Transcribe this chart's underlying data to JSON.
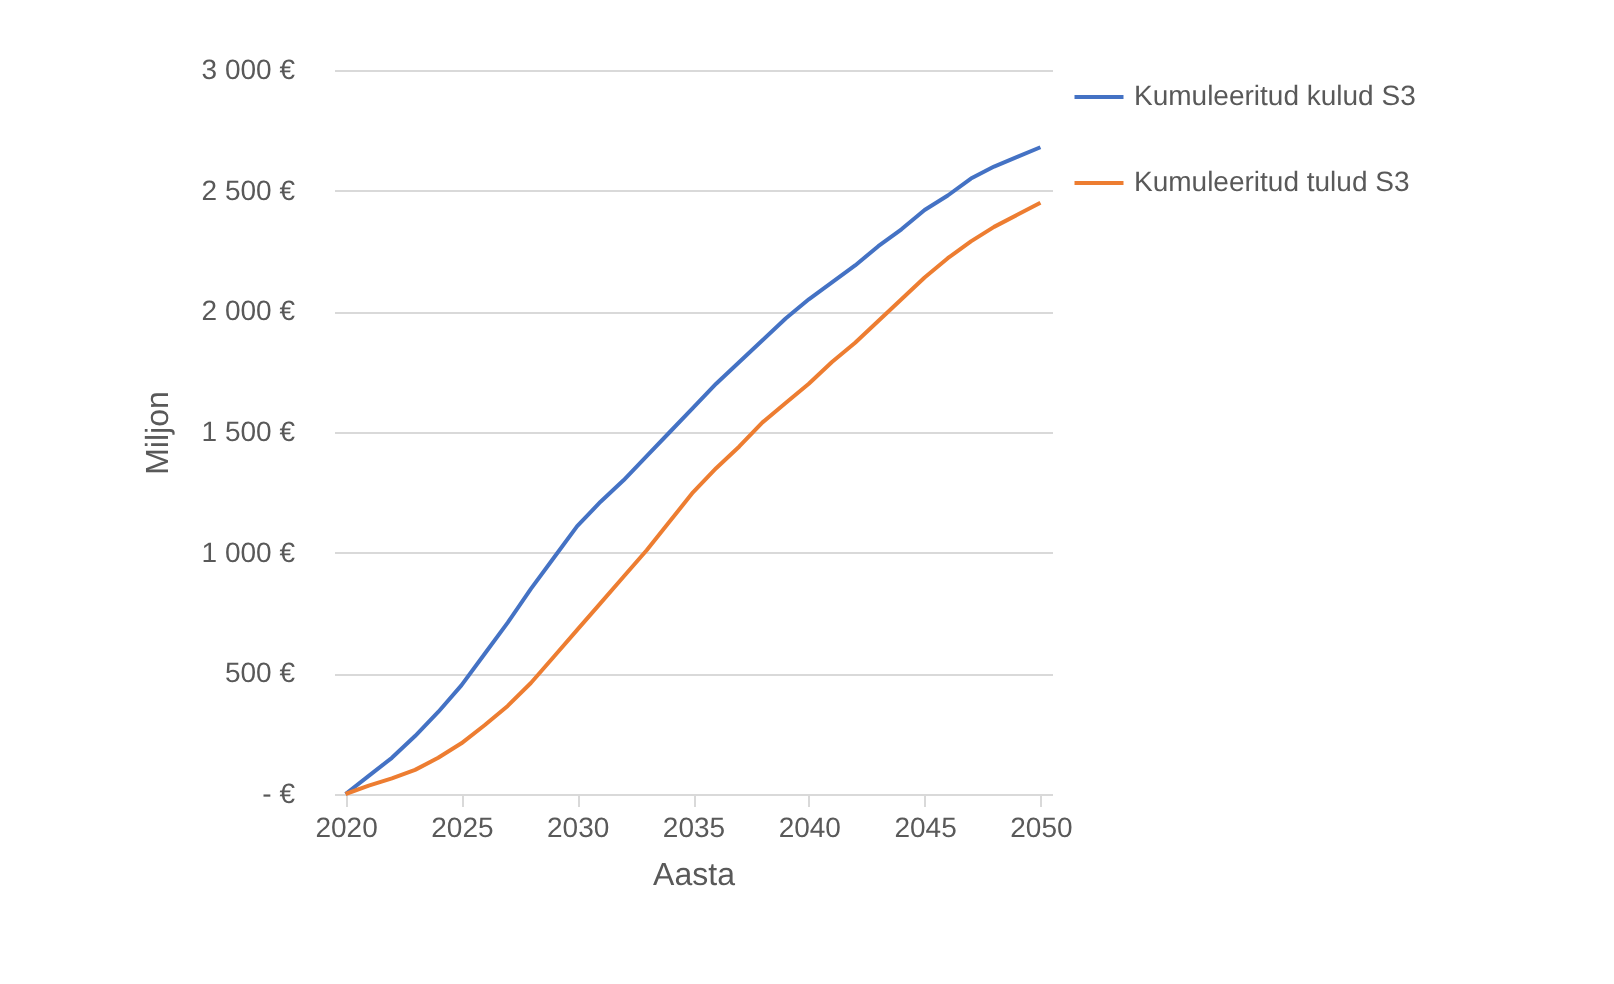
{
  "chart_data": {
    "type": "line",
    "xlabel": "Aasta",
    "ylabel": "Miljon",
    "x": [
      2020,
      2021,
      2022,
      2023,
      2024,
      2025,
      2026,
      2027,
      2028,
      2029,
      2030,
      2031,
      2032,
      2033,
      2034,
      2035,
      2036,
      2037,
      2038,
      2039,
      2040,
      2041,
      2042,
      2043,
      2044,
      2045,
      2046,
      2047,
      2048,
      2049,
      2050
    ],
    "series": [
      {
        "name": "Kumuleeritud kulud S3",
        "color": "#4472c4",
        "values": [
          0,
          75,
          150,
          240,
          340,
          450,
          580,
          710,
          850,
          980,
          1110,
          1210,
          1300,
          1400,
          1500,
          1600,
          1700,
          1790,
          1880,
          1970,
          2050,
          2120,
          2190,
          2270,
          2340,
          2420,
          2480,
          2550,
          2600,
          2640,
          2680
        ]
      },
      {
        "name": "Kumuleeritud tulud S3",
        "color": "#ed7d31",
        "values": [
          0,
          35,
          65,
          100,
          150,
          210,
          285,
          365,
          460,
          570,
          680,
          790,
          900,
          1010,
          1130,
          1250,
          1350,
          1440,
          1540,
          1620,
          1700,
          1790,
          1870,
          1960,
          2050,
          2140,
          2220,
          2290,
          2350,
          2400,
          2450
        ]
      }
    ],
    "xlim": [
      2019.5,
      2050.5
    ],
    "xticks": [
      2020,
      2025,
      2030,
      2035,
      2040,
      2045,
      2050
    ],
    "ylim": [
      0,
      3000
    ],
    "yticks": [
      {
        "value": 0,
        "label": "-   €"
      },
      {
        "value": 500,
        "label": "500 €"
      },
      {
        "value": 1000,
        "label": "1 000 €"
      },
      {
        "value": 1500,
        "label": "1 500 €"
      },
      {
        "value": 2000,
        "label": "2 000 €"
      },
      {
        "value": 2500,
        "label": "2 500 €"
      },
      {
        "value": 3000,
        "label": "3 000 €"
      }
    ],
    "grid": "y",
    "legend": "right",
    "marker": "none",
    "line_style": "solid"
  }
}
